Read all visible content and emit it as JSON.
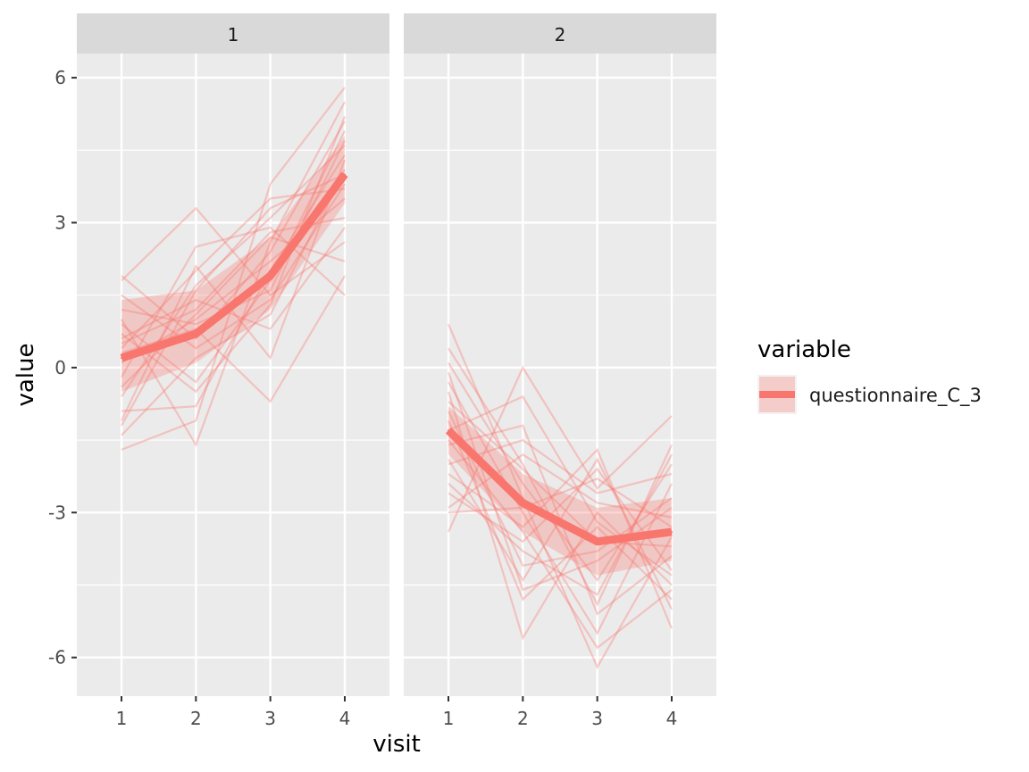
{
  "chart_data": {
    "type": "line",
    "facets": [
      "1",
      "2"
    ],
    "xlabel": "visit",
    "ylabel": "value",
    "x": [
      1,
      2,
      3,
      4
    ],
    "x_ticks": [
      "1",
      "2",
      "3",
      "4"
    ],
    "y_ticks": [
      "6",
      "3",
      "0",
      "-3",
      "-6"
    ],
    "ylim": [
      -6.8,
      6.5
    ],
    "xlim": [
      0.4,
      4.6
    ],
    "legend": {
      "title": "variable",
      "entries": [
        "questionnaire_C_3"
      ],
      "placement": "right"
    },
    "series_color": "#F8766D",
    "panel_bg": "#EBEBEB",
    "strip_bg": "#D9D9D9",
    "panels": [
      {
        "facet": "1",
        "mean": {
          "name": "questionnaire_C_3",
          "values": [
            0.2,
            0.7,
            1.9,
            4.0
          ]
        },
        "ribbon": {
          "lower": [
            -0.5,
            0.1,
            1.2,
            3.4
          ],
          "upper": [
            1.4,
            1.6,
            2.7,
            4.8
          ]
        },
        "individuals": [
          [
            1.8,
            3.3,
            1.5,
            2.6
          ],
          [
            -1.7,
            -1.1,
            3.8,
            5.8
          ],
          [
            0.5,
            1.2,
            2.8,
            3.1
          ],
          [
            -1.1,
            2.1,
            0.2,
            4.3
          ],
          [
            1.0,
            -1.6,
            2.6,
            5.5
          ],
          [
            0.3,
            0.8,
            -0.7,
            1.9
          ],
          [
            -0.6,
            1.7,
            3.1,
            4.6
          ],
          [
            1.5,
            0.4,
            1.4,
            3.8
          ],
          [
            -0.2,
            2.5,
            2.9,
            1.5
          ],
          [
            0.9,
            -0.3,
            1.8,
            4.9
          ],
          [
            0.1,
            1.0,
            2.2,
            3.5
          ],
          [
            -1.4,
            0.2,
            1.1,
            4.1
          ],
          [
            1.9,
            0.6,
            2.4,
            5.1
          ],
          [
            0.6,
            1.4,
            0.8,
            2.9
          ],
          [
            -0.9,
            -0.8,
            2.0,
            4.4
          ],
          [
            0.4,
            2.0,
            3.5,
            3.7
          ],
          [
            1.2,
            0.9,
            1.6,
            4.7
          ],
          [
            -0.4,
            1.1,
            2.7,
            2.2
          ],
          [
            0.7,
            -0.5,
            1.3,
            5.2
          ],
          [
            -1.2,
            1.6,
            3.3,
            4.0
          ]
        ]
      },
      {
        "facet": "2",
        "mean": {
          "name": "questionnaire_C_3",
          "values": [
            -1.3,
            -2.8,
            -3.6,
            -3.4
          ]
        },
        "ribbon": {
          "lower": [
            -1.8,
            -3.4,
            -4.3,
            -4.0
          ],
          "upper": [
            -0.8,
            -2.2,
            -2.9,
            -2.7
          ]
        },
        "individuals": [
          [
            0.9,
            -2.7,
            -6.2,
            -3.5
          ],
          [
            -3.4,
            0.0,
            -2.5,
            -1.0
          ],
          [
            -0.5,
            -5.6,
            -3.0,
            -4.5
          ],
          [
            0.4,
            -2.0,
            -4.9,
            -1.6
          ],
          [
            -2.2,
            -3.3,
            -1.7,
            -5.4
          ],
          [
            -0.9,
            -4.1,
            -3.8,
            -2.7
          ],
          [
            -1.6,
            -1.2,
            -5.1,
            -3.9
          ],
          [
            -2.6,
            -3.6,
            -2.1,
            -4.2
          ],
          [
            0.1,
            -2.4,
            -4.4,
            -2.0
          ],
          [
            -1.1,
            -4.8,
            -3.3,
            -4.8
          ],
          [
            -2.9,
            -1.8,
            -2.8,
            -3.1
          ],
          [
            -0.3,
            -3.0,
            -5.5,
            -2.4
          ],
          [
            -1.9,
            -4.4,
            -1.9,
            -5.0
          ],
          [
            -0.7,
            -2.1,
            -3.6,
            -3.7
          ],
          [
            -2.4,
            -3.8,
            -4.7,
            -1.8
          ],
          [
            -1.3,
            -0.6,
            -3.2,
            -4.3
          ],
          [
            -3.0,
            -2.9,
            -2.3,
            -3.3
          ],
          [
            -0.1,
            -4.6,
            -4.0,
            -2.9
          ],
          [
            -1.5,
            -3.4,
            -5.8,
            -4.6
          ],
          [
            -2.0,
            -1.5,
            -2.6,
            -2.2
          ]
        ]
      }
    ]
  }
}
